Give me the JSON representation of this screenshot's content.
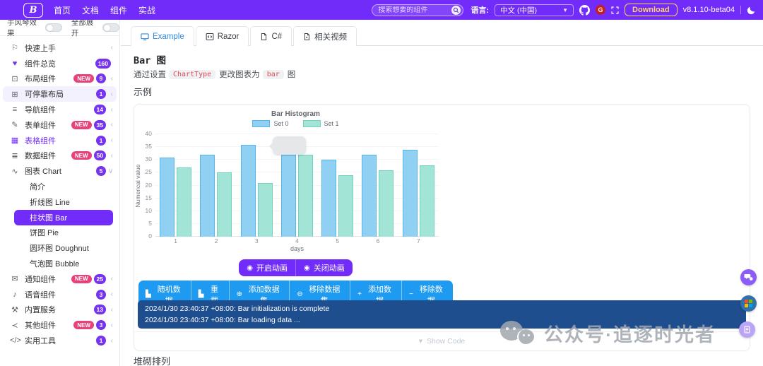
{
  "header": {
    "logo_text": "B",
    "nav": [
      {
        "label": "首页"
      },
      {
        "label": "文档"
      },
      {
        "label": "组件"
      },
      {
        "label": "实战"
      }
    ],
    "search_placeholder": "搜索想要的组件",
    "language_label": "语言:",
    "language_value": "中文 (中国)",
    "download_label": "Download",
    "version": "v8.1.10-beta04"
  },
  "colors": {
    "brand": "#712cf9",
    "data_button": "#1e9bf0",
    "console_bg": "#1f4e8e",
    "count_badge": "#7634f0",
    "new_badge": "#e7437a",
    "active_tab_link": "#2f8be0"
  },
  "sidebar": {
    "accordion_label": "手风琴效果",
    "expand_all_label": "全部展开",
    "items_top": [
      {
        "icon_name": "flag-icon",
        "icon": "⚐",
        "label": "快速上手",
        "badge": "",
        "new": "",
        "arrow": "‹"
      },
      {
        "icon_name": "heart-icon",
        "icon": "♥",
        "label": "组件总览",
        "badge": "160",
        "new": "",
        "arrow": ""
      },
      {
        "icon_name": "monitor-icon",
        "icon": "⊡",
        "label": "布局组件",
        "badge": "9",
        "new": "NEW",
        "arrow": "‹"
      },
      {
        "icon_name": "dock-layout-icon",
        "icon": "⊞",
        "label": "可停靠布局",
        "badge": "1",
        "new": "",
        "arrow": "‹",
        "state": "hover"
      },
      {
        "icon_name": "nav-list-icon",
        "icon": "≡",
        "label": "导航组件",
        "badge": "14",
        "new": "",
        "arrow": "‹"
      },
      {
        "icon_name": "form-pen-icon",
        "icon": "✎",
        "label": "表单组件",
        "badge": "35",
        "new": "NEW",
        "arrow": "‹"
      },
      {
        "icon_name": "table-grid-icon",
        "icon": "▦",
        "label": "表格组件",
        "badge": "1",
        "new": "",
        "arrow": "‹",
        "state": "parent-active"
      },
      {
        "icon_name": "database-icon",
        "icon": "≣",
        "label": "数据组件",
        "badge": "50",
        "new": "NEW",
        "arrow": "‹"
      },
      {
        "icon_name": "chart-line-icon",
        "icon": "∿",
        "label": "图表 Chart",
        "badge": "5",
        "new": "",
        "arrow": "∨",
        "state": "expanded"
      }
    ],
    "chart_children": [
      {
        "label": "简介"
      },
      {
        "label": "折线图 Line"
      },
      {
        "label": "柱状图 Bar",
        "active": true
      },
      {
        "label": "饼图 Pie"
      },
      {
        "label": "圆环图 Doughnut"
      },
      {
        "label": "气泡图 Bubble"
      }
    ],
    "items_bottom": [
      {
        "icon_name": "chat-bubbles-icon",
        "icon": "✉",
        "label": "通知组件",
        "badge": "25",
        "new": "NEW",
        "arrow": "‹"
      },
      {
        "icon_name": "microphone-icon",
        "icon": "♪",
        "label": "语音组件",
        "badge": "3",
        "new": "",
        "arrow": "‹"
      },
      {
        "icon_name": "tools-icon",
        "icon": "⚒",
        "label": "内置服务",
        "badge": "13",
        "new": "",
        "arrow": "‹"
      },
      {
        "icon_name": "share-icon",
        "icon": "≺",
        "label": "其他组件",
        "badge": "3",
        "new": "NEW",
        "arrow": "‹"
      },
      {
        "icon_name": "code-slash-icon",
        "icon": "</>",
        "label": "实用工具",
        "badge": "1",
        "new": "",
        "arrow": "‹"
      }
    ]
  },
  "tabs": [
    {
      "label": "Example",
      "icon": "monitor",
      "active": true
    },
    {
      "label": "Razor",
      "icon": "code",
      "active": false
    },
    {
      "label": "C#",
      "icon": "file",
      "active": false
    },
    {
      "label": "相关视频",
      "icon": "video",
      "active": false
    }
  ],
  "content": {
    "title": "Bar 图",
    "desc": [
      {
        "t": "text",
        "v": "通过设置"
      },
      {
        "t": "code",
        "v": "ChartType"
      },
      {
        "t": "text",
        "v": "更改图表为"
      },
      {
        "t": "code",
        "v": "bar"
      },
      {
        "t": "text",
        "v": "图"
      }
    ],
    "example_title": "示例",
    "stacked_title": "堆砌排列",
    "show_code_label": "Show Code",
    "buttons_animation": [
      {
        "name": "start-animation-button",
        "icon_name": "play-circle-icon",
        "icon": "◉",
        "label": "开启动画"
      },
      {
        "name": "stop-animation-button",
        "icon_name": "stop-circle-icon",
        "icon": "◉",
        "label": "关闭动画"
      }
    ],
    "buttons_data": [
      {
        "name": "random-data-button",
        "icon_name": "histogram-icon",
        "icon": "▙",
        "label": "随机数据"
      },
      {
        "name": "reload-button",
        "icon_name": "histogram-icon",
        "icon": "▙",
        "label": "重载"
      },
      {
        "name": "add-dataset-button",
        "icon_name": "plus-circle-icon",
        "icon": "⊕",
        "label": "添加数据集"
      },
      {
        "name": "remove-dataset-button",
        "icon_name": "minus-circle-icon",
        "icon": "⊖",
        "label": "移除数据集"
      },
      {
        "name": "add-data-button",
        "icon_name": "plus-icon",
        "icon": "+",
        "label": "添加数据"
      },
      {
        "name": "remove-data-button",
        "icon_name": "minus-icon",
        "icon": "−",
        "label": "移除数据"
      }
    ],
    "console_lines": [
      "2024/1/30 23:40:37 +08:00: Bar initialization is complete",
      "2024/1/30 23:40:37 +08:00: Bar loading data ..."
    ]
  },
  "chart_data": {
    "type": "bar",
    "title": "Bar Histogram",
    "xlabel": "days",
    "ylabel": "Numerical value",
    "categories": [
      "1",
      "2",
      "3",
      "4",
      "5",
      "6",
      "7"
    ],
    "series": [
      {
        "name": "Set 0",
        "fill": "#90d1f3",
        "border": "#58b7e8",
        "values": [
          31,
          32,
          36,
          32,
          30,
          32,
          34
        ]
      },
      {
        "name": "Set 1",
        "fill": "#a2e5d6",
        "border": "#70d2bf",
        "values": [
          27,
          25,
          21,
          32,
          24,
          26,
          28
        ]
      }
    ],
    "ylim": [
      0,
      40
    ],
    "ytick_step": 5,
    "grid": true,
    "legend_position": "top"
  },
  "watermark": {
    "text": "公众号·追逐时光者"
  }
}
